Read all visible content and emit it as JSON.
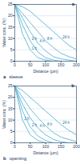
{
  "chart_data": [
    {
      "type": "line",
      "title": "sleeve",
      "annotation": "a",
      "x_label": "Distance (μm)",
      "y_label": "Water conc. (%)",
      "x": [
        0,
        25,
        50,
        75,
        100,
        125,
        150,
        175,
        200
      ],
      "xlim": [
        0,
        200
      ],
      "xticks": [
        0,
        50,
        100,
        150,
        200
      ],
      "ylim": [
        0,
        25
      ],
      "yticks": [
        0,
        5,
        10,
        15,
        20,
        25
      ],
      "color": "#5bb3d6",
      "series": [
        {
          "name": "24 h",
          "values": [
            25,
            24,
            22,
            19,
            16,
            13,
            10,
            7,
            5
          ]
        },
        {
          "name": "8 h",
          "values": [
            25,
            21,
            17,
            13,
            9,
            6,
            3.5,
            2,
            1
          ]
        },
        {
          "name": "4 h",
          "values": [
            25,
            19,
            13,
            8,
            4.5,
            2,
            1,
            0.5,
            0
          ]
        },
        {
          "name": "2 h",
          "values": [
            25,
            16,
            9,
            4,
            1.5,
            0.5,
            0,
            0,
            0
          ]
        },
        {
          "name": "1 h",
          "values": [
            25,
            12,
            5,
            1.5,
            0.5,
            0,
            0,
            0,
            0
          ]
        }
      ]
    },
    {
      "type": "line",
      "title": "opening",
      "annotation": "b",
      "x_label": "Distance (μm)",
      "y_label": "Water conc. (%)",
      "x": [
        0,
        25,
        50,
        75,
        100,
        125,
        150,
        175,
        200
      ],
      "xlim": [
        0,
        200
      ],
      "xticks": [
        0,
        50,
        100,
        150,
        200
      ],
      "ylim": [
        0,
        25
      ],
      "yticks": [
        0,
        5,
        10,
        15,
        20,
        25
      ],
      "color": "#5bb3d6",
      "series": [
        {
          "name": "24 h",
          "values": [
            25,
            23,
            20,
            17,
            14,
            11,
            8,
            5.5,
            3.5
          ]
        },
        {
          "name": "8 h",
          "values": [
            25,
            20,
            15,
            11,
            7.5,
            4.5,
            2.5,
            1.5,
            0.5
          ]
        },
        {
          "name": "4 h",
          "values": [
            25,
            17,
            11,
            6.5,
            3.5,
            1.5,
            0.5,
            0,
            0
          ]
        },
        {
          "name": "2 h",
          "values": [
            25,
            14,
            7,
            3,
            1,
            0,
            0,
            0,
            0
          ]
        },
        {
          "name": "1 h",
          "values": [
            25,
            10,
            3.5,
            1,
            0,
            0,
            0,
            0,
            0
          ]
        }
      ]
    }
  ]
}
